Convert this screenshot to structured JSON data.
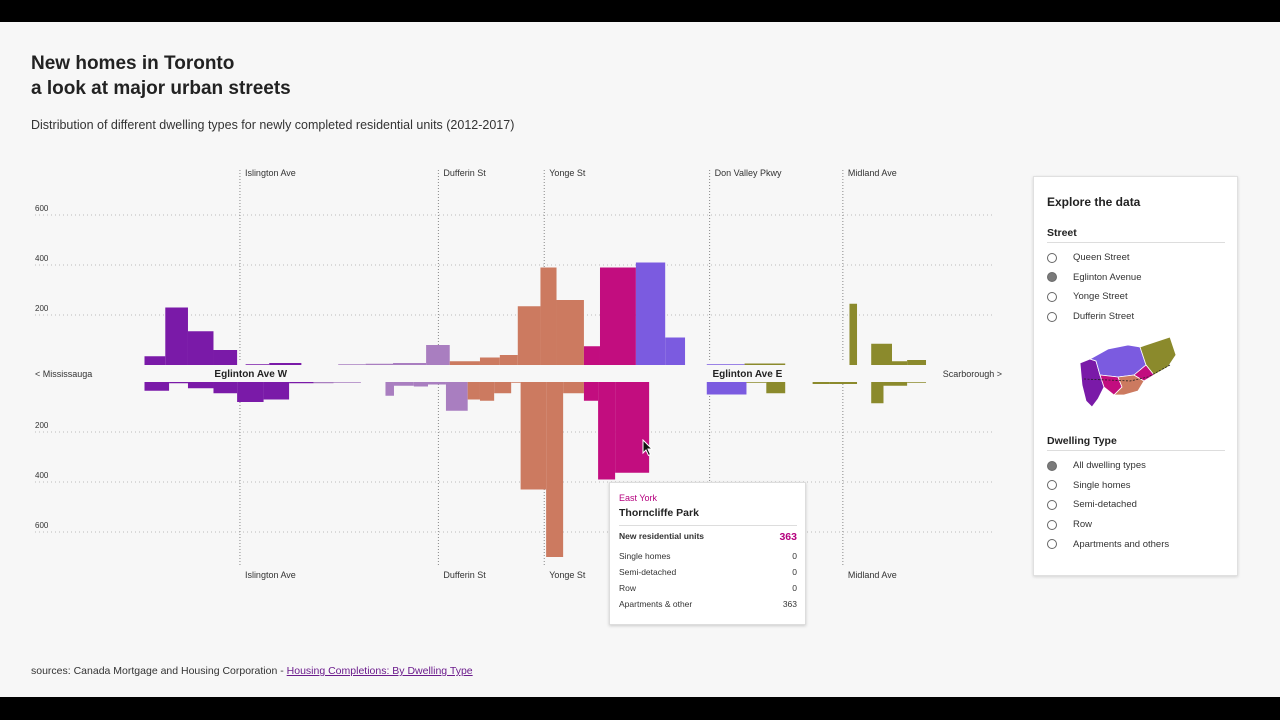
{
  "header": {
    "title_line1": "New homes in Toronto",
    "title_line2": "a look at major urban streets",
    "subtitle": "Distribution of different dwelling types for newly completed residential units (2012-2017)"
  },
  "chart_data": {
    "type": "bar",
    "layout": "mirrored-histogram",
    "axis_ticks": [
      200,
      400,
      600
    ],
    "axis_max": 650,
    "x_range": [
      0,
      100
    ],
    "street_labels_top": [
      {
        "label": "Islington Ave",
        "x": 20.1
      },
      {
        "label": "Dufferin St",
        "x": 41.1
      },
      {
        "label": "Yonge St",
        "x": 52.3
      },
      {
        "label": "Don Valley Pkwy",
        "x": 69.8
      },
      {
        "label": "Midland Ave",
        "x": 83.9
      }
    ],
    "street_labels_bottom": [
      {
        "label": "Islington Ave",
        "x": 20.1
      },
      {
        "label": "Dufferin St",
        "x": 41.1
      },
      {
        "label": "Yonge St",
        "x": 52.3
      },
      {
        "label": "Midland Ave",
        "x": 83.9
      }
    ],
    "center_labels": {
      "left_end": "< Mississauga",
      "west": "Eglinton Ave W",
      "east": "Eglinton Ave E",
      "right_end": "Scarborough >"
    },
    "series_top": [
      {
        "x0": 10.0,
        "x1": 12.2,
        "value": 35,
        "color": "#7a1aa8"
      },
      {
        "x0": 12.2,
        "x1": 14.6,
        "value": 230,
        "color": "#7a1aa8"
      },
      {
        "x0": 14.6,
        "x1": 17.3,
        "value": 135,
        "color": "#7a1aa8"
      },
      {
        "x0": 17.3,
        "x1": 19.8,
        "value": 60,
        "color": "#7a1aa8"
      },
      {
        "x0": 20.7,
        "x1": 23.2,
        "value": 3,
        "color": "#7a1aa8"
      },
      {
        "x0": 23.2,
        "x1": 26.6,
        "value": 8,
        "color": "#7a1aa8"
      },
      {
        "x0": 30.5,
        "x1": 33.4,
        "value": 3,
        "color": "#a97ec0"
      },
      {
        "x0": 33.4,
        "x1": 36.3,
        "value": 5,
        "color": "#a97ec0"
      },
      {
        "x0": 36.3,
        "x1": 39.8,
        "value": 8,
        "color": "#a97ec0"
      },
      {
        "x0": 39.8,
        "x1": 42.3,
        "value": 80,
        "color": "#a97ec0"
      },
      {
        "x0": 42.3,
        "x1": 45.5,
        "value": 15,
        "color": "#cc7a60"
      },
      {
        "x0": 45.5,
        "x1": 47.6,
        "value": 30,
        "color": "#cc7a60"
      },
      {
        "x0": 47.6,
        "x1": 49.5,
        "value": 40,
        "color": "#cc7a60"
      },
      {
        "x0": 49.5,
        "x1": 51.9,
        "value": 235,
        "color": "#cc7a60"
      },
      {
        "x0": 51.9,
        "x1": 53.6,
        "value": 390,
        "color": "#cc7a60"
      },
      {
        "x0": 53.6,
        "x1": 56.5,
        "value": 260,
        "color": "#cc7a60"
      },
      {
        "x0": 56.5,
        "x1": 58.2,
        "value": 75,
        "color": "#c20d7f"
      },
      {
        "x0": 58.2,
        "x1": 62.0,
        "value": 390,
        "color": "#c20d7f"
      },
      {
        "x0": 62.0,
        "x1": 65.1,
        "value": 410,
        "color": "#7b5be0"
      },
      {
        "x0": 65.1,
        "x1": 67.2,
        "value": 110,
        "color": "#7b5be0"
      },
      {
        "x0": 69.5,
        "x1": 73.5,
        "value": 3,
        "color": "#7b5be0"
      },
      {
        "x0": 73.5,
        "x1": 77.8,
        "value": 6,
        "color": "#8b8a2c"
      },
      {
        "x0": 84.6,
        "x1": 85.4,
        "value": 245,
        "color": "#8b8a2c"
      },
      {
        "x0": 86.9,
        "x1": 89.1,
        "value": 85,
        "color": "#8b8a2c"
      },
      {
        "x0": 89.1,
        "x1": 90.7,
        "value": 15,
        "color": "#8b8a2c"
      },
      {
        "x0": 90.7,
        "x1": 92.7,
        "value": 20,
        "color": "#8b8a2c"
      }
    ],
    "series_bottom": [
      {
        "x0": 10.0,
        "x1": 12.6,
        "value": 35,
        "color": "#7a1aa8"
      },
      {
        "x0": 12.6,
        "x1": 14.6,
        "value": 5,
        "color": "#7a1aa8"
      },
      {
        "x0": 14.6,
        "x1": 17.3,
        "value": 25,
        "color": "#7a1aa8"
      },
      {
        "x0": 17.3,
        "x1": 19.8,
        "value": 45,
        "color": "#7a1aa8"
      },
      {
        "x0": 19.8,
        "x1": 22.6,
        "value": 80,
        "color": "#7a1aa8"
      },
      {
        "x0": 22.6,
        "x1": 25.3,
        "value": 70,
        "color": "#7a1aa8"
      },
      {
        "x0": 25.3,
        "x1": 27.9,
        "value": 5,
        "color": "#7a1aa8"
      },
      {
        "x0": 27.9,
        "x1": 30.0,
        "value": 5,
        "color": "#a97ec0"
      },
      {
        "x0": 30.0,
        "x1": 32.9,
        "value": 3,
        "color": "#a97ec0"
      },
      {
        "x0": 35.5,
        "x1": 36.4,
        "value": 55,
        "color": "#a97ec0"
      },
      {
        "x0": 36.4,
        "x1": 38.5,
        "value": 15,
        "color": "#a97ec0"
      },
      {
        "x0": 38.5,
        "x1": 40.0,
        "value": 18,
        "color": "#a97ec0"
      },
      {
        "x0": 40.0,
        "x1": 41.9,
        "value": 10,
        "color": "#a97ec0"
      },
      {
        "x0": 41.9,
        "x1": 44.2,
        "value": 115,
        "color": "#a97ec0"
      },
      {
        "x0": 44.2,
        "x1": 45.5,
        "value": 70,
        "color": "#cc7a60"
      },
      {
        "x0": 45.5,
        "x1": 47.0,
        "value": 75,
        "color": "#cc7a60"
      },
      {
        "x0": 47.0,
        "x1": 48.8,
        "value": 45,
        "color": "#cc7a60"
      },
      {
        "x0": 48.8,
        "x1": 49.8,
        "value": 3,
        "color": "#cc7a60"
      },
      {
        "x0": 49.8,
        "x1": 52.5,
        "value": 430,
        "color": "#cc7a60"
      },
      {
        "x0": 52.5,
        "x1": 54.3,
        "value": 700,
        "color": "#cc7a60"
      },
      {
        "x0": 54.3,
        "x1": 56.5,
        "value": 45,
        "color": "#cc7a60"
      },
      {
        "x0": 56.5,
        "x1": 58.0,
        "value": 75,
        "color": "#c20d7f"
      },
      {
        "x0": 58.0,
        "x1": 59.8,
        "value": 390,
        "color": "#c20d7f"
      },
      {
        "x0": 59.8,
        "x1": 63.4,
        "value": 363,
        "color": "#c20d7f"
      },
      {
        "x0": 69.5,
        "x1": 73.7,
        "value": 50,
        "color": "#7b5be0"
      },
      {
        "x0": 73.7,
        "x1": 75.8,
        "value": 3,
        "color": "#8b8a2c"
      },
      {
        "x0": 75.8,
        "x1": 77.8,
        "value": 45,
        "color": "#8b8a2c"
      },
      {
        "x0": 80.7,
        "x1": 82.5,
        "value": 8,
        "color": "#8b8a2c"
      },
      {
        "x0": 82.5,
        "x1": 85.4,
        "value": 8,
        "color": "#8b8a2c"
      },
      {
        "x0": 86.9,
        "x1": 88.2,
        "value": 85,
        "color": "#8b8a2c"
      },
      {
        "x0": 88.2,
        "x1": 90.7,
        "value": 15,
        "color": "#8b8a2c"
      },
      {
        "x0": 90.7,
        "x1": 92.7,
        "value": 3,
        "color": "#8b8a2c"
      }
    ],
    "grid": true
  },
  "tooltip": {
    "area": "East York",
    "neighbourhood": "Thorncliffe Park",
    "total_label": "New residential units",
    "total_value": "363",
    "rows": [
      {
        "label": "Single homes",
        "value": "0"
      },
      {
        "label": "Semi-detached",
        "value": "0"
      },
      {
        "label": "Row",
        "value": "0"
      },
      {
        "label": "Apartments & other",
        "value": "363"
      }
    ]
  },
  "panel": {
    "title": "Explore the data",
    "street_heading": "Street",
    "streets": [
      {
        "label": "Queen Street",
        "selected": false
      },
      {
        "label": "Eglinton Avenue",
        "selected": true
      },
      {
        "label": "Yonge Street",
        "selected": false
      },
      {
        "label": "Dufferin Street",
        "selected": false
      }
    ],
    "dwelling_heading": "Dwelling Type",
    "dwellings": [
      {
        "label": "All dwelling types",
        "selected": true
      },
      {
        "label": "Single homes",
        "selected": false
      },
      {
        "label": "Semi-detached",
        "selected": false
      },
      {
        "label": "Row",
        "selected": false
      },
      {
        "label": "Apartments and others",
        "selected": false
      }
    ],
    "map_colors": [
      "#7a1aa8",
      "#7b5be0",
      "#8b8a2c",
      "#cc7a60",
      "#c20d7f"
    ]
  },
  "footer": {
    "source_prefix": "sources: Canada Mortgage and Housing Corporation - ",
    "source_link": "Housing Completions: By Dwelling Type"
  }
}
